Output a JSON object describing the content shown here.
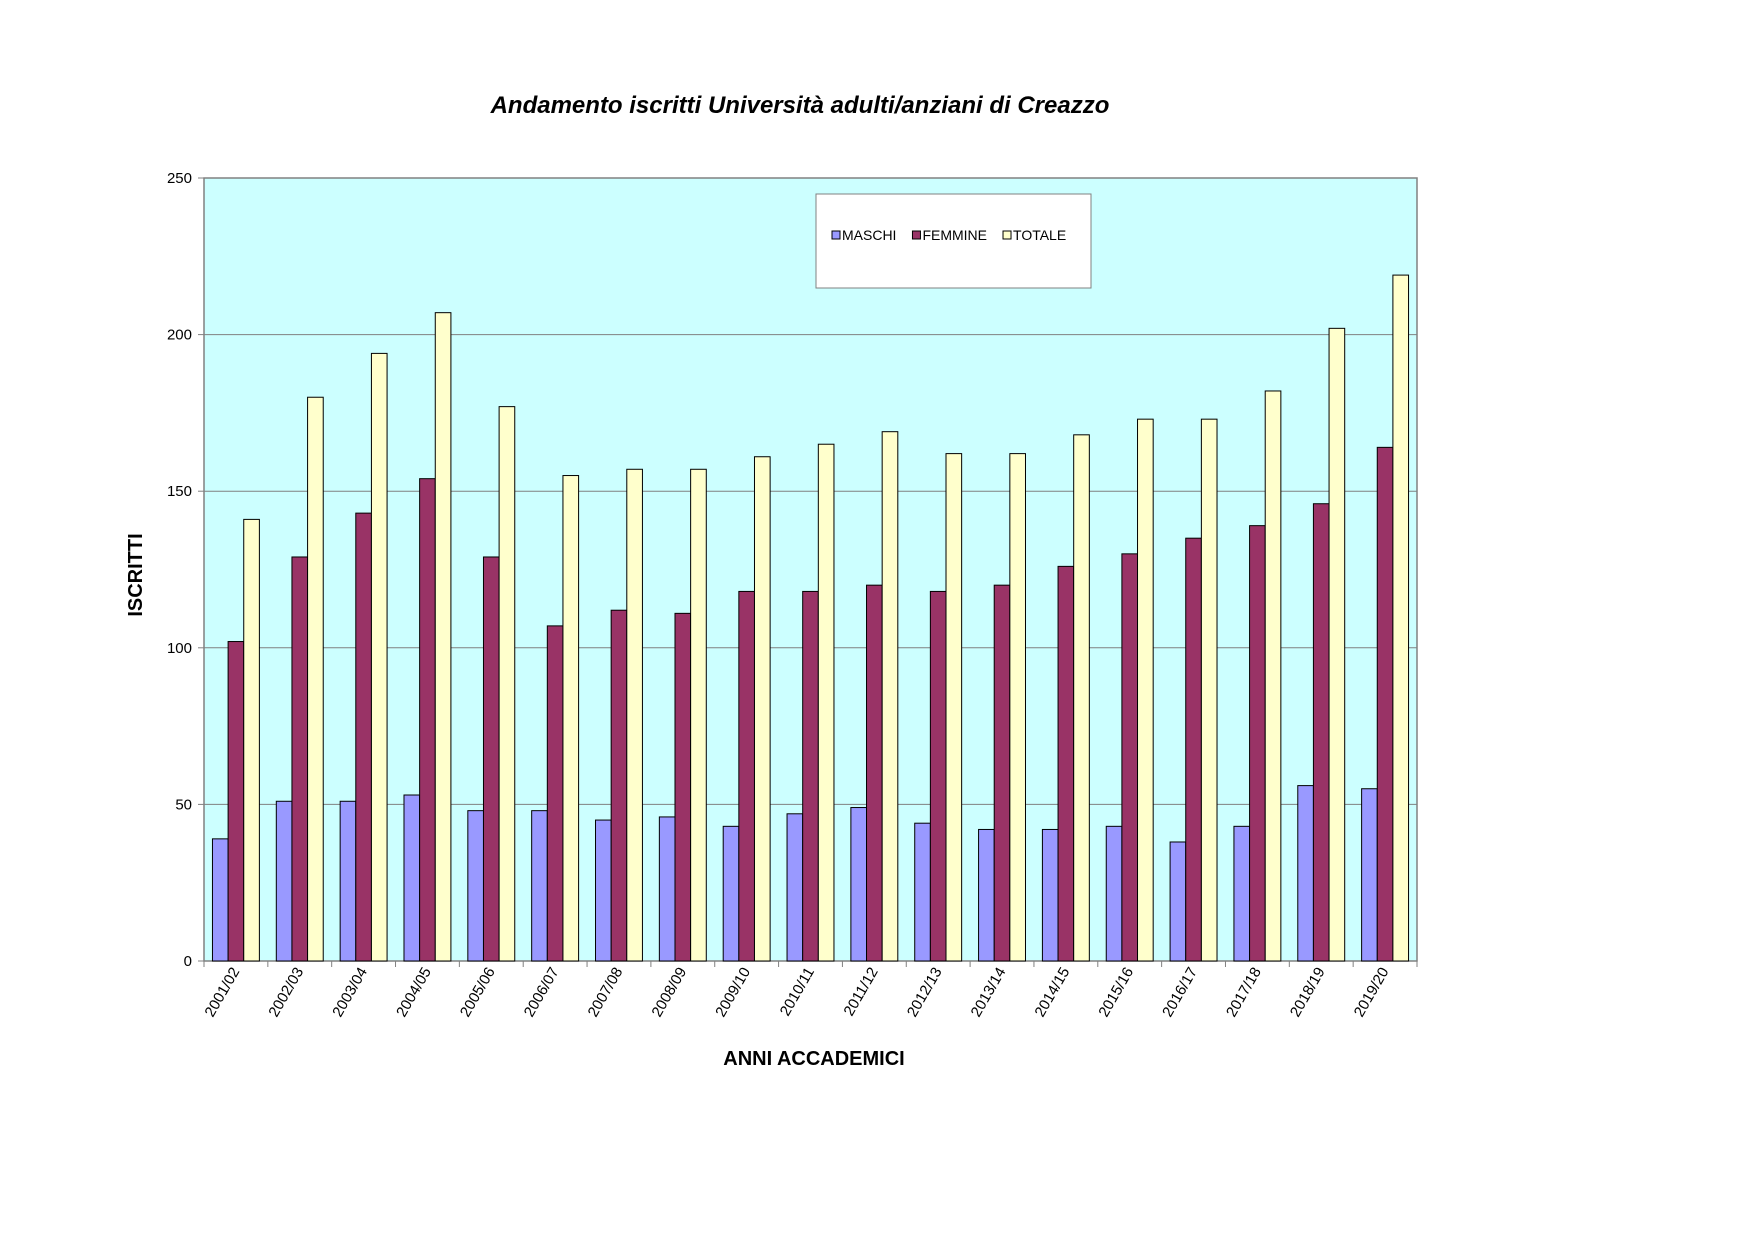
{
  "chart_data": {
    "type": "bar",
    "title": "Andamento iscritti Università adulti/anziani di Creazzo",
    "xlabel": "ANNI ACCADEMICI",
    "ylabel": "ISCRITTI",
    "ylim": [
      0,
      250
    ],
    "yticks": [
      0,
      50,
      100,
      150,
      200,
      250
    ],
    "grid": true,
    "legend_position": "top-right",
    "plot_background": "#ccffff",
    "categories": [
      "2001/02",
      "2002/03",
      "2003/04",
      "2004/05",
      "2005/06",
      "2006/07",
      "2007/08",
      "2008/09",
      "2009/10",
      "2010/11",
      "2011/12",
      "2012/13",
      "2013/14",
      "2014/15",
      "2015/16",
      "2016/17",
      "2017/18",
      "2018/19",
      "2019/20"
    ],
    "series": [
      {
        "name": "MASCHI",
        "color": "#9999ff",
        "values": [
          39,
          51,
          51,
          53,
          48,
          48,
          45,
          46,
          43,
          47,
          49,
          44,
          42,
          42,
          43,
          38,
          43,
          56,
          55
        ]
      },
      {
        "name": "FEMMINE",
        "color": "#993366",
        "values": [
          102,
          129,
          143,
          154,
          129,
          107,
          112,
          111,
          118,
          118,
          120,
          118,
          120,
          126,
          130,
          135,
          139,
          146,
          164
        ]
      },
      {
        "name": "TOTALE",
        "color": "#ffffcc",
        "values": [
          141,
          180,
          194,
          207,
          177,
          155,
          157,
          157,
          161,
          165,
          169,
          162,
          162,
          168,
          173,
          173,
          182,
          202,
          219
        ]
      }
    ]
  }
}
